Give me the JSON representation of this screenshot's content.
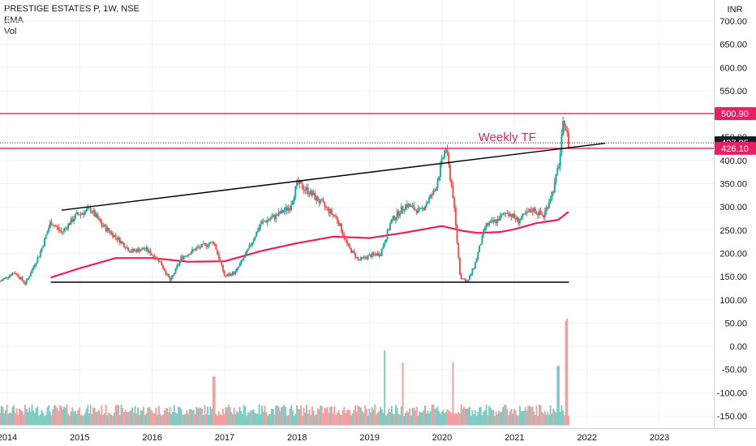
{
  "legend": {
    "symbol_line": "PRESTIGE ESTATES P, 1W, NSE",
    "ema_label": "EMA",
    "vol_label": "Vol"
  },
  "currency_label": "INR",
  "colors": {
    "up": "#26a69a",
    "down": "#ef5350",
    "ema": "#e91e63",
    "hline": "#e91e63",
    "trendline": "#000000",
    "tag_bg": "#e91e63",
    "vol_up": "#80cbc4",
    "vol_down": "#f4a0a0"
  },
  "chart_data": {
    "type": "candlestick",
    "title": "PRESTIGE ESTATES P, 1W, NSE",
    "currency": "INR",
    "x_axis": {
      "labels": [
        "2014",
        "2015",
        "2016",
        "2017",
        "2018",
        "2019",
        "2020",
        "2021",
        "2022",
        "2023"
      ],
      "range": [
        2013.9,
        2023.75
      ]
    },
    "y_axis": {
      "ticks": [
        "700.00",
        "650.00",
        "600.00",
        "550.00",
        "500.00",
        "450.00",
        "400.00",
        "350.00",
        "300.00",
        "250.00",
        "200.00",
        "150.00",
        "100.00",
        "50.00",
        "0.00",
        "-50.00",
        "-100.00",
        "-150.00"
      ],
      "range": [
        -160,
        720
      ]
    },
    "price_anchors": [
      [
        2013.9,
        140
      ],
      [
        2014.1,
        160
      ],
      [
        2014.25,
        135
      ],
      [
        2014.45,
        200
      ],
      [
        2014.6,
        268
      ],
      [
        2014.75,
        245
      ],
      [
        2014.95,
        282
      ],
      [
        2015.15,
        295
      ],
      [
        2015.3,
        262
      ],
      [
        2015.5,
        235
      ],
      [
        2015.7,
        205
      ],
      [
        2015.9,
        210
      ],
      [
        2016.1,
        185
      ],
      [
        2016.25,
        140
      ],
      [
        2016.4,
        190
      ],
      [
        2016.6,
        210
      ],
      [
        2016.85,
        225
      ],
      [
        2017.0,
        150
      ],
      [
        2017.15,
        160
      ],
      [
        2017.3,
        200
      ],
      [
        2017.5,
        265
      ],
      [
        2017.7,
        280
      ],
      [
        2017.9,
        300
      ],
      [
        2018.0,
        350
      ],
      [
        2018.15,
        335
      ],
      [
        2018.35,
        305
      ],
      [
        2018.55,
        275
      ],
      [
        2018.7,
        215
      ],
      [
        2018.85,
        185
      ],
      [
        2019.0,
        195
      ],
      [
        2019.15,
        200
      ],
      [
        2019.3,
        270
      ],
      [
        2019.5,
        305
      ],
      [
        2019.7,
        290
      ],
      [
        2019.9,
        335
      ],
      [
        2020.05,
        430
      ],
      [
        2020.15,
        325
      ],
      [
        2020.25,
        150
      ],
      [
        2020.35,
        138
      ],
      [
        2020.45,
        175
      ],
      [
        2020.6,
        260
      ],
      [
        2020.75,
        270
      ],
      [
        2020.9,
        290
      ],
      [
        2021.05,
        270
      ],
      [
        2021.25,
        295
      ],
      [
        2021.4,
        280
      ],
      [
        2021.55,
        345
      ],
      [
        2021.62,
        400
      ],
      [
        2021.68,
        490
      ],
      [
        2021.72,
        460
      ],
      [
        2021.75,
        430
      ]
    ],
    "ema_anchors": [
      [
        2014.6,
        148
      ],
      [
        2015.0,
        168
      ],
      [
        2015.5,
        190
      ],
      [
        2016.0,
        190
      ],
      [
        2016.5,
        182
      ],
      [
        2017.0,
        183
      ],
      [
        2017.5,
        205
      ],
      [
        2018.0,
        222
      ],
      [
        2018.5,
        236
      ],
      [
        2019.0,
        233
      ],
      [
        2019.5,
        245
      ],
      [
        2020.0,
        259
      ],
      [
        2020.1,
        255
      ],
      [
        2020.3,
        248
      ],
      [
        2020.5,
        244
      ],
      [
        2020.8,
        246
      ],
      [
        2021.0,
        252
      ],
      [
        2021.3,
        265
      ],
      [
        2021.6,
        272
      ],
      [
        2021.75,
        290
      ]
    ],
    "horizontal_lines": [
      {
        "value": 500.9,
        "label": "500.90"
      },
      {
        "value": 426.1,
        "label": "426.10"
      }
    ],
    "current_price": {
      "value": 437.95,
      "label": "437.95"
    },
    "support_line": {
      "from": [
        2014.6,
        138
      ],
      "to": [
        2021.75,
        138
      ]
    },
    "trend_line": {
      "from": [
        2014.75,
        293
      ],
      "to": [
        2022.25,
        437
      ]
    },
    "annotation": {
      "text": "Weekly TF",
      "at": [
        2020.5,
        450
      ]
    },
    "volume": {
      "baseline": -170,
      "spikes": [
        [
          2016.85,
          -65
        ],
        [
          2019.2,
          -9
        ],
        [
          2019.45,
          -35
        ],
        [
          2020.15,
          -35
        ],
        [
          2021.6,
          -42
        ],
        [
          2021.7,
          55
        ],
        [
          2021.72,
          60
        ]
      ]
    }
  }
}
